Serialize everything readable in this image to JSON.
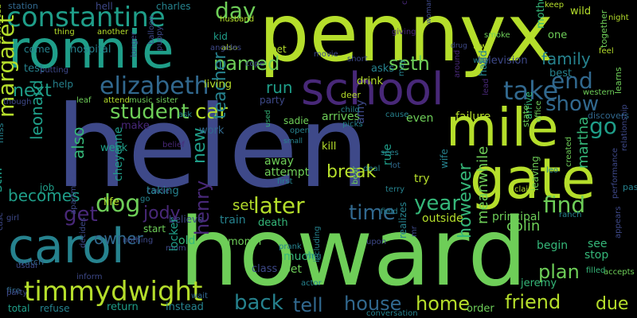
{
  "palette": {
    "background": "#000000",
    "yellow_green": "#b5de2b",
    "green": "#6ece58",
    "teal": "#1f9e89",
    "blue": "#31688e",
    "dark_blue": "#3e4989",
    "purple": "#482878",
    "deep_purple": "#440154",
    "sea": "#26828e",
    "lime": "#35b779"
  },
  "words": [
    "helen",
    "howard",
    "pennyx",
    "ronnie",
    "school",
    "gate",
    "mile",
    "carol",
    "timmydwight",
    "constantine",
    "elizabeth",
    "later",
    "margaret",
    "student",
    "dog",
    "take",
    "end",
    "show",
    "go",
    "seth",
    "day",
    "named",
    "car",
    "time",
    "family",
    "year",
    "find",
    "get",
    "tell",
    "house",
    "back",
    "home",
    "friend",
    "due",
    "plan",
    "colin",
    "jody",
    "owner",
    "henry",
    "teacher",
    "break",
    "next",
    "new",
    "set",
    "run",
    "leonard",
    "also",
    "still",
    "becomes",
    "however",
    "meanwhile",
    "martha",
    "principal",
    "jeremy",
    "order",
    "kill",
    "arrives",
    "even",
    "rule",
    "failure",
    "believe",
    "cheyenne",
    "work",
    "make",
    "week",
    "living",
    "party",
    "help",
    "job",
    "life",
    "old",
    "start",
    "death",
    "train",
    "much",
    "class",
    "bet",
    "instead",
    "return",
    "total",
    "refuse",
    "wait",
    "watch",
    "test",
    "come",
    "station",
    "hell",
    "charles",
    "kid",
    "pet",
    "drink",
    "television",
    "mother",
    "wild",
    "arrive",
    "fire",
    "miss",
    "pass",
    "one",
    "feel",
    "keep",
    "night",
    "conversation",
    "accepts",
    "appears",
    "performance",
    "relationship",
    "western",
    "discovers",
    "learns",
    "together",
    "leaving",
    "state",
    "office",
    "created",
    "smoke",
    "law",
    "woman",
    "drug",
    "movie",
    "short",
    "asks",
    "deer",
    "lot",
    "terry",
    "field",
    "bear",
    "actor",
    "ring",
    "prank",
    "open",
    "small",
    "used",
    "sadie",
    "amy",
    "try",
    "wife",
    "outside",
    "mr",
    "upon",
    "nothing",
    "cause",
    "mom",
    "including",
    "realizes",
    "see",
    "stop",
    "begin",
    "filled",
    "ranch",
    "leo",
    "hand",
    "best",
    "around",
    "lead",
    "hospital",
    "also",
    "husband",
    "concert",
    "giving",
    "claim",
    "thing",
    "another",
    "convinced",
    "putting",
    "though",
    "leaf",
    "attend",
    "music",
    "sister",
    "balloon",
    "puppy",
    "longer",
    "angeles",
    "cope",
    "month",
    "locker",
    "taking",
    "belief",
    "usual",
    "decides",
    "inform",
    "party",
    "case",
    "girl",
    "apartment",
    "attempt",
    "away",
    "child",
    "picks",
    "sees",
    "deal",
    "go",
    "first",
    "cause",
    "ask",
    "may",
    "way",
    "situation",
    "drug"
  ]
}
